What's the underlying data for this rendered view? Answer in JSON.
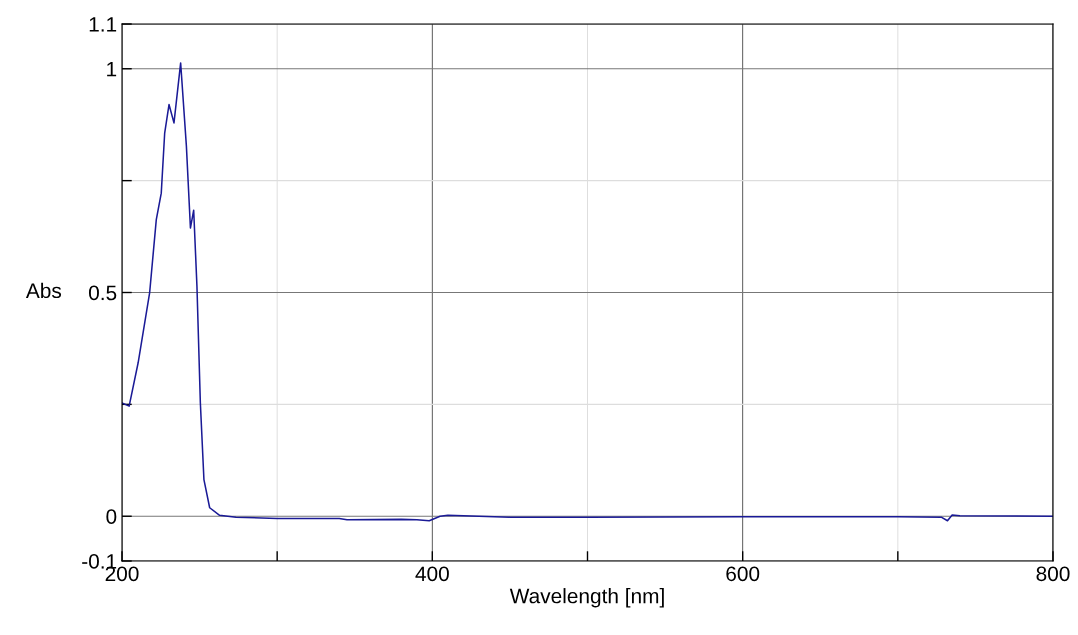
{
  "chart_data": {
    "type": "line",
    "xlabel": "Wavelength [nm]",
    "ylabel": "Abs",
    "xlim": [
      200,
      800
    ],
    "ylim": [
      -0.1,
      1.1
    ],
    "xticks": [
      200,
      {
        "value": 300,
        "label": null
      },
      400,
      {
        "value": 500,
        "label": null
      },
      600,
      {
        "value": 700,
        "label": null
      },
      800
    ],
    "yticks": [
      -0.1,
      0,
      {
        "value": 0.25,
        "label": null
      },
      0.5,
      {
        "value": 0.75,
        "label": null
      },
      1,
      1.1
    ],
    "grid": true,
    "marker": "none",
    "line_style": "solid",
    "series": [
      {
        "color": "#1a1a96",
        "x": [
          200,
          204.6,
          210.4,
          217.8,
          222.1,
          225.3,
          227.5,
          230.3,
          233.5,
          237.8,
          241.5,
          244.1,
          246.2,
          248.3,
          250.5,
          252.8,
          256.5,
          262.9,
          273.5,
          300,
          340,
          345,
          380,
          390,
          398,
          405,
          410,
          450,
          500,
          600,
          700,
          728,
          732,
          735,
          740,
          800
        ],
        "values": [
          0.253,
          0.246,
          0.343,
          0.499,
          0.663,
          0.722,
          0.856,
          0.92,
          0.879,
          1.013,
          0.827,
          0.644,
          0.684,
          0.514,
          0.253,
          0.082,
          0.019,
          0.002,
          -0.002,
          -0.005,
          -0.005,
          -0.008,
          -0.007,
          -0.008,
          -0.01,
          0.0,
          0.002,
          -0.002,
          -0.002,
          -0.001,
          -0.001,
          -0.002,
          -0.01,
          0.003,
          0.001,
          0.0
        ]
      }
    ]
  }
}
